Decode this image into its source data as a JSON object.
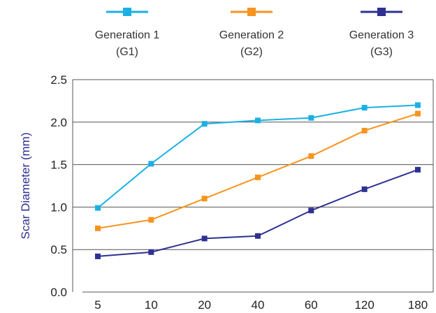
{
  "chart_data": {
    "type": "line",
    "categories": [
      "5",
      "10",
      "20",
      "40",
      "60",
      "120",
      "180"
    ],
    "ylabel": "Scar Diameter (mm)",
    "xlabel": "",
    "ylim": [
      0,
      2.5
    ],
    "yticks": [
      "0.0",
      "0.5",
      "1.0",
      "1.5",
      "2.0",
      "2.5"
    ],
    "grid": "horizontal",
    "legend_position": "top",
    "series": [
      {
        "name_line1": "Generation 1",
        "name_line2": "(G1)",
        "color": "#1ab0e6",
        "values": [
          0.99,
          1.51,
          1.98,
          2.02,
          2.05,
          2.17,
          2.2
        ]
      },
      {
        "name_line1": "Generation 2",
        "name_line2": "(G2)",
        "color": "#f7941d",
        "values": [
          0.75,
          0.85,
          1.1,
          1.35,
          1.6,
          1.9,
          2.1
        ]
      },
      {
        "name_line1": "Generation 3",
        "name_line2": "(G3)",
        "color": "#2e3192",
        "values": [
          0.42,
          0.47,
          0.63,
          0.66,
          0.96,
          1.21,
          1.44
        ]
      }
    ]
  }
}
